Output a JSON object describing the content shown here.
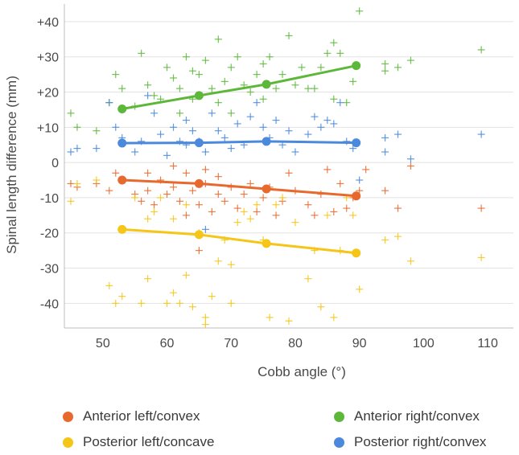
{
  "chart_data": {
    "type": "scatter",
    "xlabel": "Cobb angle (°)",
    "ylabel": "Spinal length difference (mm)",
    "xlim": [
      44,
      114
    ],
    "ylim": [
      -47,
      45
    ],
    "x_ticks": [
      50,
      60,
      70,
      80,
      90,
      100,
      110
    ],
    "y_ticks": [
      -40,
      -30,
      -20,
      -10,
      0,
      10,
      20,
      30,
      40
    ],
    "y_tick_labels": [
      "-40",
      "-30",
      "-20",
      "-10",
      "0",
      "+10",
      "+20",
      "+30",
      "+40"
    ],
    "legend_position": "bottom",
    "series": [
      {
        "name": "Anterior left/convex",
        "color": "#E8692D",
        "points": [
          [
            45,
            -6
          ],
          [
            46,
            -7
          ],
          [
            49,
            -6
          ],
          [
            51,
            -8
          ],
          [
            52,
            -3
          ],
          [
            53,
            -5
          ],
          [
            55,
            -9
          ],
          [
            56,
            -11
          ],
          [
            57,
            -3
          ],
          [
            57,
            -8
          ],
          [
            58,
            -12
          ],
          [
            59,
            -5
          ],
          [
            60,
            -9
          ],
          [
            61,
            -1
          ],
          [
            61,
            -7
          ],
          [
            62,
            -11
          ],
          [
            63,
            -3
          ],
          [
            63,
            -15
          ],
          [
            64,
            -8
          ],
          [
            65,
            -12
          ],
          [
            65,
            -25
          ],
          [
            66,
            -2
          ],
          [
            66,
            -6
          ],
          [
            67,
            -14
          ],
          [
            68,
            -9
          ],
          [
            68,
            -4
          ],
          [
            69,
            -11
          ],
          [
            70,
            -7
          ],
          [
            71,
            -13
          ],
          [
            72,
            -9
          ],
          [
            73,
            -6
          ],
          [
            74,
            -14
          ],
          [
            75,
            -10
          ],
          [
            76,
            -7
          ],
          [
            77,
            -15
          ],
          [
            78,
            -11
          ],
          [
            79,
            -3
          ],
          [
            80,
            -8
          ],
          [
            82,
            -12
          ],
          [
            83,
            -15
          ],
          [
            84,
            -9
          ],
          [
            85,
            -2
          ],
          [
            86,
            -14
          ],
          [
            87,
            -6
          ],
          [
            88,
            -13
          ],
          [
            89,
            -10
          ],
          [
            90,
            -8
          ],
          [
            91,
            -2
          ],
          [
            94,
            -8
          ],
          [
            96,
            -13
          ],
          [
            98,
            -1
          ],
          [
            109,
            -13
          ]
        ],
        "trend": [
          [
            53,
            -5
          ],
          [
            65,
            -6
          ],
          [
            75.5,
            -7.5
          ],
          [
            89.5,
            -9.5
          ]
        ]
      },
      {
        "name": "Anterior right/convex",
        "color": "#5DB83A",
        "points": [
          [
            45,
            14
          ],
          [
            46,
            10
          ],
          [
            49,
            9
          ],
          [
            51,
            17
          ],
          [
            52,
            25
          ],
          [
            53,
            21
          ],
          [
            55,
            16
          ],
          [
            56,
            31
          ],
          [
            57,
            22
          ],
          [
            58,
            19
          ],
          [
            59,
            18
          ],
          [
            60,
            27
          ],
          [
            61,
            24
          ],
          [
            62,
            14
          ],
          [
            62,
            21
          ],
          [
            63,
            30
          ],
          [
            64,
            26
          ],
          [
            64,
            18
          ],
          [
            65,
            25
          ],
          [
            66,
            29
          ],
          [
            67,
            21
          ],
          [
            68,
            35
          ],
          [
            68,
            17
          ],
          [
            69,
            23
          ],
          [
            70,
            27
          ],
          [
            70,
            14
          ],
          [
            71,
            30
          ],
          [
            72,
            22
          ],
          [
            73,
            20
          ],
          [
            74,
            25
          ],
          [
            75,
            28
          ],
          [
            75,
            18
          ],
          [
            76,
            30
          ],
          [
            77,
            21
          ],
          [
            78,
            25
          ],
          [
            79,
            36
          ],
          [
            80,
            22
          ],
          [
            81,
            27
          ],
          [
            82,
            21
          ],
          [
            83,
            21
          ],
          [
            84,
            27
          ],
          [
            85,
            31
          ],
          [
            86,
            34
          ],
          [
            86,
            18
          ],
          [
            87,
            31
          ],
          [
            88,
            17
          ],
          [
            89,
            23
          ],
          [
            90,
            43
          ],
          [
            94,
            28
          ],
          [
            94,
            26
          ],
          [
            96,
            27
          ],
          [
            98,
            29
          ],
          [
            109,
            32
          ]
        ],
        "trend": [
          [
            53,
            15.2
          ],
          [
            65,
            19
          ],
          [
            75.5,
            22.2
          ],
          [
            89.5,
            27.5
          ]
        ]
      },
      {
        "name": "Posterior left/concave",
        "color": "#F5C518",
        "points": [
          [
            45,
            -11
          ],
          [
            46,
            -6
          ],
          [
            49,
            -5
          ],
          [
            51,
            -35
          ],
          [
            52,
            -40
          ],
          [
            53,
            -38
          ],
          [
            55,
            -10
          ],
          [
            56,
            -40
          ],
          [
            57,
            -16
          ],
          [
            57,
            -33
          ],
          [
            58,
            -14
          ],
          [
            59,
            -10
          ],
          [
            60,
            -40
          ],
          [
            61,
            -37
          ],
          [
            61,
            -16
          ],
          [
            62,
            -40
          ],
          [
            63,
            -12
          ],
          [
            63,
            -32
          ],
          [
            64,
            -41
          ],
          [
            65,
            -20
          ],
          [
            66,
            -44
          ],
          [
            66,
            -46
          ],
          [
            67,
            -38
          ],
          [
            68,
            -28
          ],
          [
            69,
            -22
          ],
          [
            70,
            -40
          ],
          [
            70,
            -29
          ],
          [
            71,
            -17
          ],
          [
            72,
            -14
          ],
          [
            73,
            -16
          ],
          [
            74,
            -12
          ],
          [
            75,
            -22
          ],
          [
            76,
            -44
          ],
          [
            77,
            -12
          ],
          [
            78,
            -10
          ],
          [
            79,
            -45
          ],
          [
            80,
            -17
          ],
          [
            82,
            -33
          ],
          [
            83,
            -25
          ],
          [
            84,
            -41
          ],
          [
            85,
            -15
          ],
          [
            86,
            -44
          ],
          [
            87,
            -25
          ],
          [
            88,
            -10
          ],
          [
            89,
            -15
          ],
          [
            90,
            -36
          ],
          [
            94,
            -22
          ],
          [
            96,
            -21
          ],
          [
            98,
            -28
          ],
          [
            109,
            -27
          ]
        ],
        "trend": [
          [
            53,
            -19
          ],
          [
            65,
            -20.5
          ],
          [
            75.5,
            -23
          ],
          [
            89.5,
            -25.7
          ]
        ]
      },
      {
        "name": "Posterior right/convex",
        "color": "#4A89DC",
        "points": [
          [
            45,
            3
          ],
          [
            46,
            4
          ],
          [
            49,
            4
          ],
          [
            51,
            17
          ],
          [
            52,
            10
          ],
          [
            53,
            7
          ],
          [
            55,
            3
          ],
          [
            56,
            6
          ],
          [
            57,
            19
          ],
          [
            58,
            14
          ],
          [
            59,
            8
          ],
          [
            60,
            2
          ],
          [
            61,
            10
          ],
          [
            62,
            6
          ],
          [
            63,
            12
          ],
          [
            63,
            5
          ],
          [
            64,
            9
          ],
          [
            65,
            6
          ],
          [
            66,
            -19
          ],
          [
            66,
            3
          ],
          [
            67,
            14
          ],
          [
            68,
            9
          ],
          [
            69,
            7
          ],
          [
            70,
            4
          ],
          [
            71,
            11
          ],
          [
            72,
            5
          ],
          [
            73,
            13
          ],
          [
            74,
            17
          ],
          [
            75,
            10
          ],
          [
            76,
            7
          ],
          [
            77,
            12
          ],
          [
            78,
            5
          ],
          [
            79,
            9
          ],
          [
            80,
            3
          ],
          [
            82,
            8
          ],
          [
            83,
            13
          ],
          [
            84,
            10
          ],
          [
            85,
            12
          ],
          [
            86,
            11
          ],
          [
            87,
            17
          ],
          [
            88,
            6
          ],
          [
            89,
            4
          ],
          [
            90,
            -5
          ],
          [
            94,
            7
          ],
          [
            94,
            3
          ],
          [
            96,
            8
          ],
          [
            98,
            1
          ],
          [
            109,
            8
          ]
        ],
        "trend": [
          [
            53,
            5.5
          ],
          [
            65,
            5.6
          ],
          [
            75.5,
            6
          ],
          [
            89.5,
            5.6
          ]
        ]
      }
    ]
  }
}
